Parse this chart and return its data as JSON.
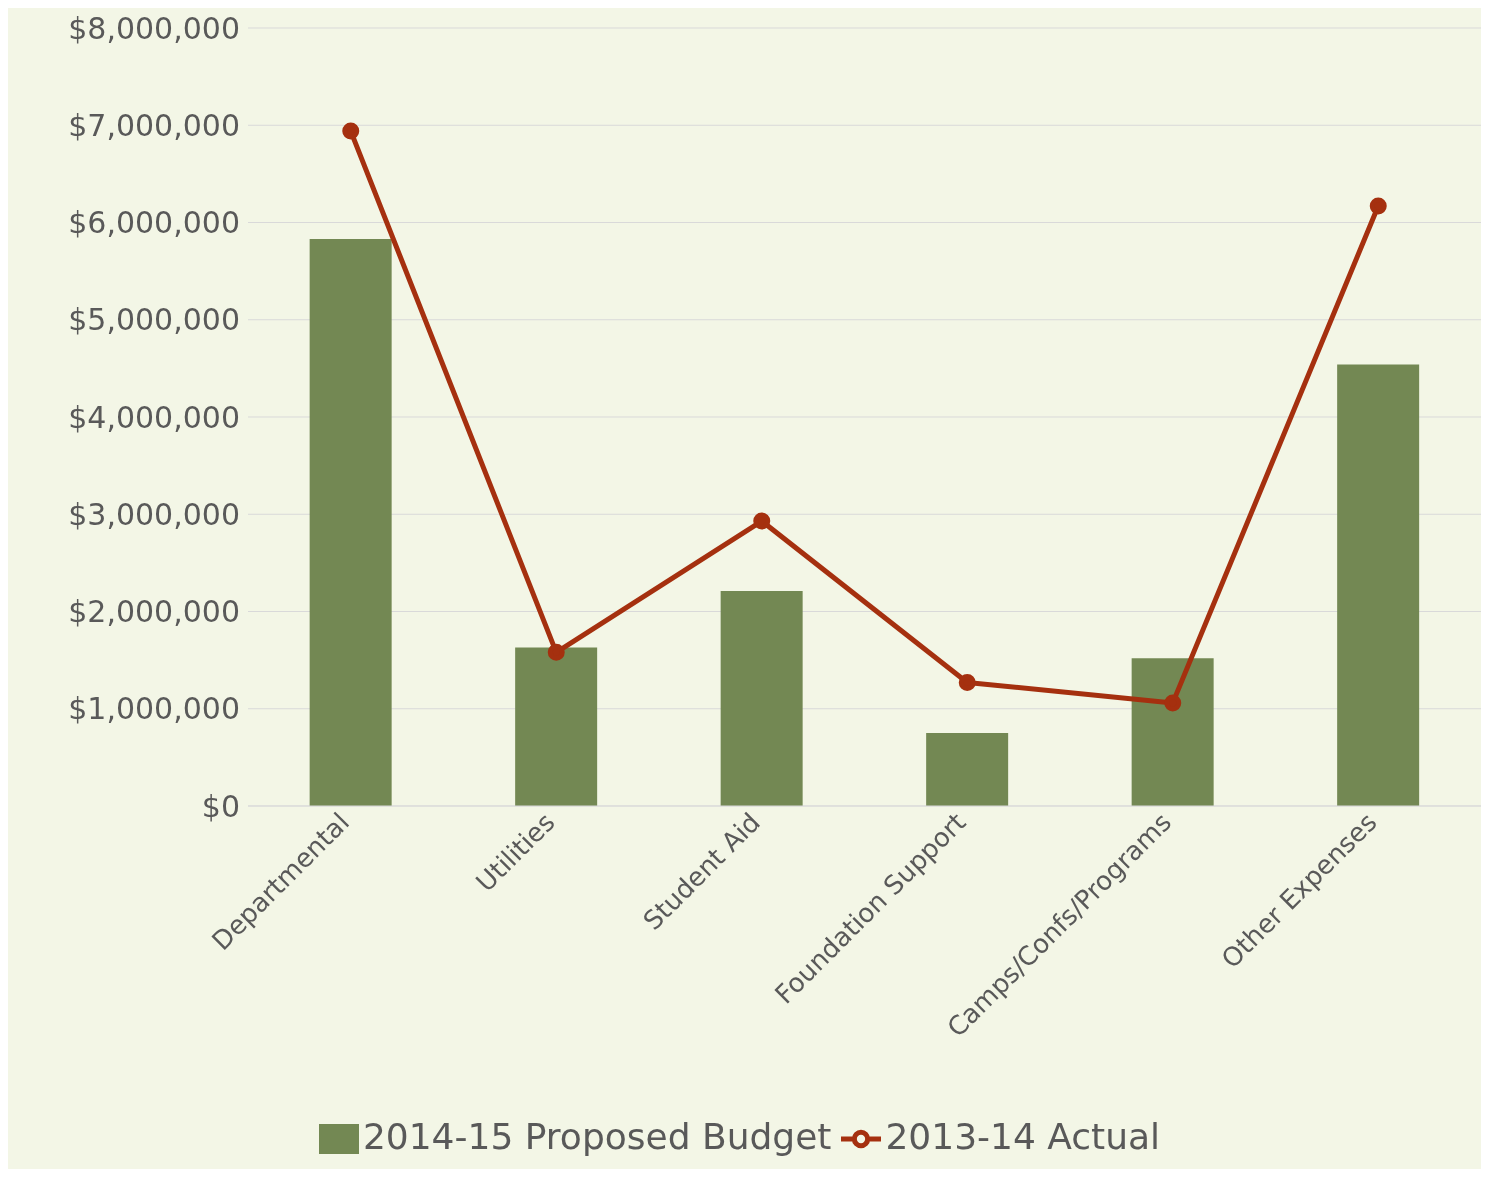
{
  "chart_data": {
    "type": "bar",
    "categories": [
      "Departmental",
      "Utilities",
      "Student Aid",
      "Foundation Support",
      "Camps/Confs/Programs",
      "Other Expenses"
    ],
    "series": [
      {
        "name": "2014-15 Proposed Budget",
        "color": "#738853",
        "values": [
          5830000,
          1630000,
          2210000,
          750000,
          1520000,
          4540000
        ]
      },
      {
        "name": "2013-14 Actual",
        "type": "line",
        "color": "#a5300f",
        "values": [
          6940000,
          1580000,
          2930000,
          1270000,
          1060000,
          6170000
        ],
        "marker": "circle"
      }
    ],
    "ylim": [
      0,
      8000000
    ],
    "yticks": [
      {
        "value": 0,
        "label": "$0"
      },
      {
        "value": 1000000,
        "label": "$1,000,000"
      },
      {
        "value": 2000000,
        "label": "$2,000,000"
      },
      {
        "value": 3000000,
        "label": "$3,000,000"
      },
      {
        "value": 4000000,
        "label": "$4,000,000"
      },
      {
        "value": 5000000,
        "label": "$5,000,000"
      },
      {
        "value": 6000000,
        "label": "$6,000,000"
      },
      {
        "value": 7000000,
        "label": "$7,000,000"
      },
      {
        "value": 8000000,
        "label": "$8,000,000"
      }
    ],
    "grid": "y",
    "legend": "bottom"
  }
}
